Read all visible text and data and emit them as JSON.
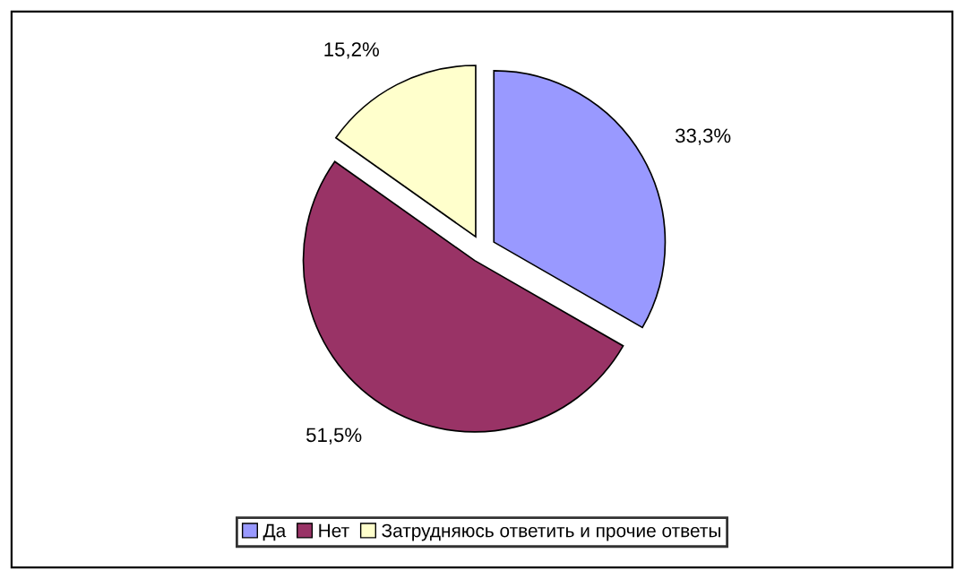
{
  "chart_data": {
    "type": "pie",
    "categories": [
      "Да",
      "Нет",
      "Затрудняюсь ответить и прочие ответы"
    ],
    "values": [
      33.3,
      51.5,
      15.2
    ],
    "colors": [
      "#9999ff",
      "#993366",
      "#ffffcc"
    ],
    "value_labels": [
      "33,3%",
      "51,5%",
      "15,2%"
    ],
    "legend": "bottom"
  }
}
